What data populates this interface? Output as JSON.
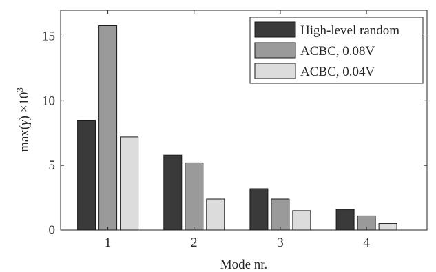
{
  "chart_data": {
    "type": "bar",
    "categories": [
      "1",
      "2",
      "3",
      "4"
    ],
    "series": [
      {
        "name": "High-level random",
        "color": "#3a3a3a",
        "values": [
          8.5,
          5.8,
          3.2,
          1.6
        ]
      },
      {
        "name": "ACBC, 0.08V",
        "color": "#9a9a9a",
        "values": [
          15.8,
          5.2,
          2.4,
          1.1
        ]
      },
      {
        "name": "ACBC, 0.04V",
        "color": "#dcdcdc",
        "values": [
          7.2,
          2.4,
          1.5,
          0.5
        ]
      }
    ],
    "xlabel": "Mode nr.",
    "ylabel_prefix": "max(",
    "ylabel_symbol": "γ",
    "ylabel_suffix": ") ×10",
    "ylabel_exponent": "3",
    "ylim": [
      0,
      17
    ],
    "yticks": [
      "0",
      "5",
      "10",
      "15"
    ],
    "legend_position": "top-right",
    "grid": false
  }
}
